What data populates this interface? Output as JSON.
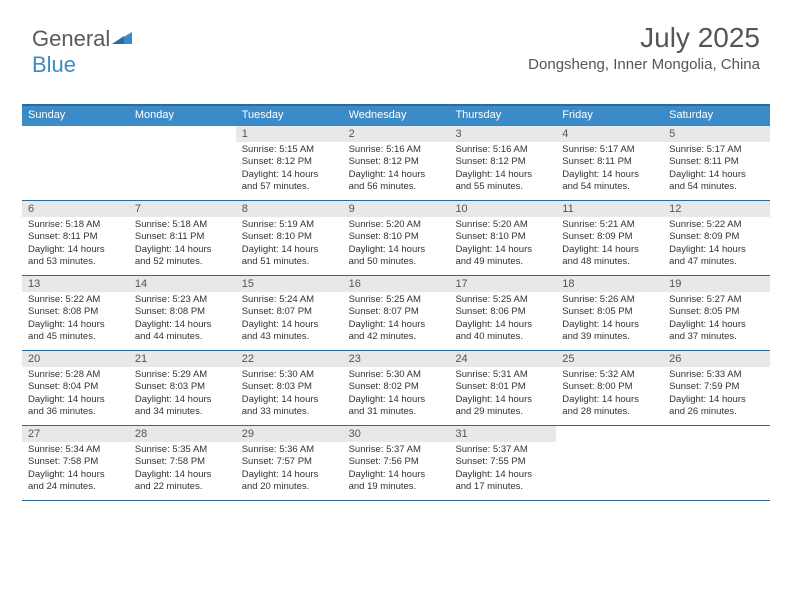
{
  "logo": {
    "text1": "General",
    "text2": "Blue"
  },
  "header": {
    "month_title": "July 2025",
    "location": "Dongsheng, Inner Mongolia, China"
  },
  "colors": {
    "header_bar": "#3b8bc9",
    "header_border": "#2b6a9e",
    "daynum_band": "#e8e8e8",
    "text": "#333333",
    "header_text": "#ffffff"
  },
  "day_headers": [
    "Sunday",
    "Monday",
    "Tuesday",
    "Wednesday",
    "Thursday",
    "Friday",
    "Saturday"
  ],
  "weeks": [
    [
      {
        "n": "",
        "sr": "",
        "ss": "",
        "dl": ""
      },
      {
        "n": "",
        "sr": "",
        "ss": "",
        "dl": ""
      },
      {
        "n": "1",
        "sr": "Sunrise: 5:15 AM",
        "ss": "Sunset: 8:12 PM",
        "dl": "Daylight: 14 hours and 57 minutes."
      },
      {
        "n": "2",
        "sr": "Sunrise: 5:16 AM",
        "ss": "Sunset: 8:12 PM",
        "dl": "Daylight: 14 hours and 56 minutes."
      },
      {
        "n": "3",
        "sr": "Sunrise: 5:16 AM",
        "ss": "Sunset: 8:12 PM",
        "dl": "Daylight: 14 hours and 55 minutes."
      },
      {
        "n": "4",
        "sr": "Sunrise: 5:17 AM",
        "ss": "Sunset: 8:11 PM",
        "dl": "Daylight: 14 hours and 54 minutes."
      },
      {
        "n": "5",
        "sr": "Sunrise: 5:17 AM",
        "ss": "Sunset: 8:11 PM",
        "dl": "Daylight: 14 hours and 54 minutes."
      }
    ],
    [
      {
        "n": "6",
        "sr": "Sunrise: 5:18 AM",
        "ss": "Sunset: 8:11 PM",
        "dl": "Daylight: 14 hours and 53 minutes."
      },
      {
        "n": "7",
        "sr": "Sunrise: 5:18 AM",
        "ss": "Sunset: 8:11 PM",
        "dl": "Daylight: 14 hours and 52 minutes."
      },
      {
        "n": "8",
        "sr": "Sunrise: 5:19 AM",
        "ss": "Sunset: 8:10 PM",
        "dl": "Daylight: 14 hours and 51 minutes."
      },
      {
        "n": "9",
        "sr": "Sunrise: 5:20 AM",
        "ss": "Sunset: 8:10 PM",
        "dl": "Daylight: 14 hours and 50 minutes."
      },
      {
        "n": "10",
        "sr": "Sunrise: 5:20 AM",
        "ss": "Sunset: 8:10 PM",
        "dl": "Daylight: 14 hours and 49 minutes."
      },
      {
        "n": "11",
        "sr": "Sunrise: 5:21 AM",
        "ss": "Sunset: 8:09 PM",
        "dl": "Daylight: 14 hours and 48 minutes."
      },
      {
        "n": "12",
        "sr": "Sunrise: 5:22 AM",
        "ss": "Sunset: 8:09 PM",
        "dl": "Daylight: 14 hours and 47 minutes."
      }
    ],
    [
      {
        "n": "13",
        "sr": "Sunrise: 5:22 AM",
        "ss": "Sunset: 8:08 PM",
        "dl": "Daylight: 14 hours and 45 minutes."
      },
      {
        "n": "14",
        "sr": "Sunrise: 5:23 AM",
        "ss": "Sunset: 8:08 PM",
        "dl": "Daylight: 14 hours and 44 minutes."
      },
      {
        "n": "15",
        "sr": "Sunrise: 5:24 AM",
        "ss": "Sunset: 8:07 PM",
        "dl": "Daylight: 14 hours and 43 minutes."
      },
      {
        "n": "16",
        "sr": "Sunrise: 5:25 AM",
        "ss": "Sunset: 8:07 PM",
        "dl": "Daylight: 14 hours and 42 minutes."
      },
      {
        "n": "17",
        "sr": "Sunrise: 5:25 AM",
        "ss": "Sunset: 8:06 PM",
        "dl": "Daylight: 14 hours and 40 minutes."
      },
      {
        "n": "18",
        "sr": "Sunrise: 5:26 AM",
        "ss": "Sunset: 8:05 PM",
        "dl": "Daylight: 14 hours and 39 minutes."
      },
      {
        "n": "19",
        "sr": "Sunrise: 5:27 AM",
        "ss": "Sunset: 8:05 PM",
        "dl": "Daylight: 14 hours and 37 minutes."
      }
    ],
    [
      {
        "n": "20",
        "sr": "Sunrise: 5:28 AM",
        "ss": "Sunset: 8:04 PM",
        "dl": "Daylight: 14 hours and 36 minutes."
      },
      {
        "n": "21",
        "sr": "Sunrise: 5:29 AM",
        "ss": "Sunset: 8:03 PM",
        "dl": "Daylight: 14 hours and 34 minutes."
      },
      {
        "n": "22",
        "sr": "Sunrise: 5:30 AM",
        "ss": "Sunset: 8:03 PM",
        "dl": "Daylight: 14 hours and 33 minutes."
      },
      {
        "n": "23",
        "sr": "Sunrise: 5:30 AM",
        "ss": "Sunset: 8:02 PM",
        "dl": "Daylight: 14 hours and 31 minutes."
      },
      {
        "n": "24",
        "sr": "Sunrise: 5:31 AM",
        "ss": "Sunset: 8:01 PM",
        "dl": "Daylight: 14 hours and 29 minutes."
      },
      {
        "n": "25",
        "sr": "Sunrise: 5:32 AM",
        "ss": "Sunset: 8:00 PM",
        "dl": "Daylight: 14 hours and 28 minutes."
      },
      {
        "n": "26",
        "sr": "Sunrise: 5:33 AM",
        "ss": "Sunset: 7:59 PM",
        "dl": "Daylight: 14 hours and 26 minutes."
      }
    ],
    [
      {
        "n": "27",
        "sr": "Sunrise: 5:34 AM",
        "ss": "Sunset: 7:58 PM",
        "dl": "Daylight: 14 hours and 24 minutes."
      },
      {
        "n": "28",
        "sr": "Sunrise: 5:35 AM",
        "ss": "Sunset: 7:58 PM",
        "dl": "Daylight: 14 hours and 22 minutes."
      },
      {
        "n": "29",
        "sr": "Sunrise: 5:36 AM",
        "ss": "Sunset: 7:57 PM",
        "dl": "Daylight: 14 hours and 20 minutes."
      },
      {
        "n": "30",
        "sr": "Sunrise: 5:37 AM",
        "ss": "Sunset: 7:56 PM",
        "dl": "Daylight: 14 hours and 19 minutes."
      },
      {
        "n": "31",
        "sr": "Sunrise: 5:37 AM",
        "ss": "Sunset: 7:55 PM",
        "dl": "Daylight: 14 hours and 17 minutes."
      },
      {
        "n": "",
        "sr": "",
        "ss": "",
        "dl": ""
      },
      {
        "n": "",
        "sr": "",
        "ss": "",
        "dl": ""
      }
    ]
  ]
}
